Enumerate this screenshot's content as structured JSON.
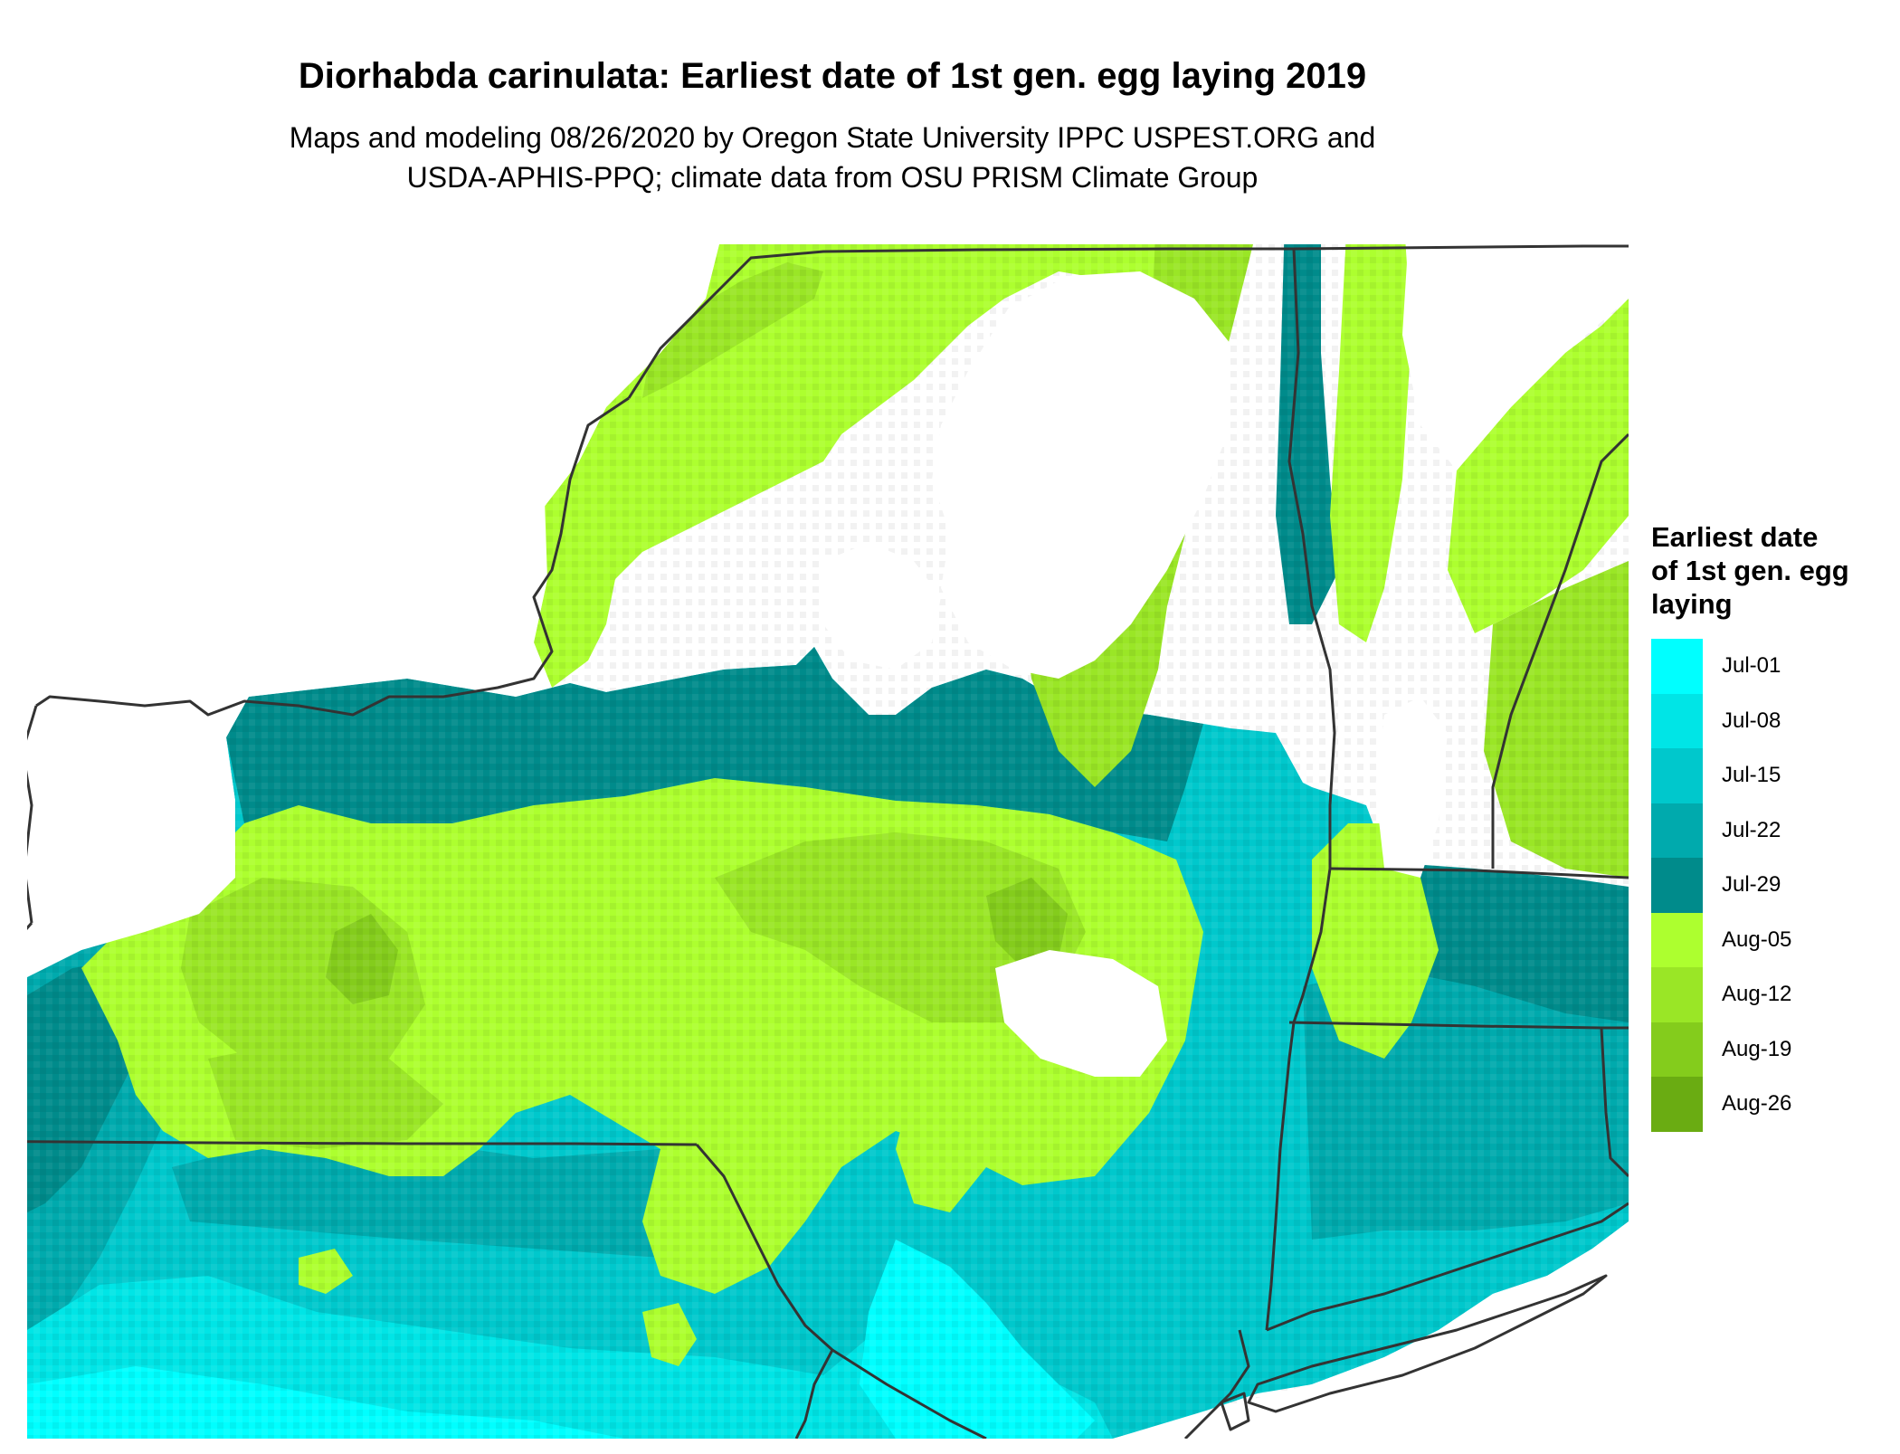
{
  "title": "Diorhabda carinulata: Earliest date of 1st gen. egg laying 2019",
  "subtitle_line1": "Maps and modeling 08/26/2020 by Oregon State University IPPC USPEST.ORG and",
  "subtitle_line2": "USDA-APHIS-PPQ; climate data from OSU PRISM Climate Group",
  "legend": {
    "title_lines": [
      "Earliest date",
      "of 1st gen. egg",
      "laying"
    ],
    "items": [
      {
        "label": "Jul-01",
        "color": "#00ffff"
      },
      {
        "label": "Jul-08",
        "color": "#00e5e6"
      },
      {
        "label": "Jul-15",
        "color": "#00c8cc"
      },
      {
        "label": "Jul-22",
        "color": "#00aaad"
      },
      {
        "label": "Jul-29",
        "color": "#008b8b"
      },
      {
        "label": "Aug-05",
        "color": "#adff2f"
      },
      {
        "label": "Aug-12",
        "color": "#9ae626"
      },
      {
        "label": "Aug-19",
        "color": "#84cc1c"
      },
      {
        "label": "Aug-26",
        "color": "#6aac12"
      }
    ]
  },
  "colors": {
    "background": "#ffffff",
    "border": "#333333"
  }
}
